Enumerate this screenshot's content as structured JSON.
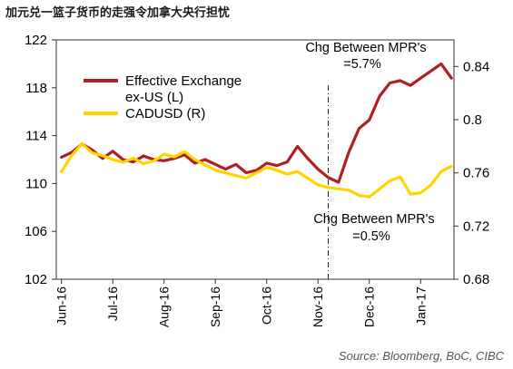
{
  "header": {
    "title": "加元兑一篮子货币的走强令加拿大央行担忧"
  },
  "footer": {
    "source": "Source:  Bloomberg, BoC, CIBC"
  },
  "chart_data": {
    "type": "line",
    "x_tick_labels": [
      "Jun-16",
      "Jul-16",
      "Aug-16",
      "Sep-16",
      "Oct-16",
      "Nov-16",
      "Dec-16",
      "Jan-17"
    ],
    "left_axis": {
      "ylim": [
        102,
        122
      ],
      "ticks": [
        102,
        106,
        110,
        114,
        118,
        122
      ]
    },
    "right_axis": {
      "ylim": [
        0.68,
        0.86
      ],
      "ticks": [
        0.68,
        0.72,
        0.76,
        0.8,
        0.84
      ]
    },
    "legend": [
      "Effective Exchange ex-US (L)",
      "CADUSD (R)"
    ],
    "legend_placement": "top-left",
    "annotations": [
      {
        "text_line1": "Chg Between MPR's",
        "text_line2": "=5.7%"
      },
      {
        "text_line1": "Chg Between MPR's",
        "text_line2": "=0.5%"
      }
    ],
    "vertical_marker_x": 5.2,
    "colors": {
      "primary": "#b01e23",
      "secondary": "#ffd400",
      "axis": "#333333",
      "text": "#000000"
    },
    "series": [
      {
        "name": "Effective Exchange ex-US (L)",
        "axis": "left",
        "x": [
          0,
          0.2,
          0.4,
          0.6,
          0.8,
          1.0,
          1.2,
          1.4,
          1.6,
          1.8,
          2.0,
          2.2,
          2.4,
          2.6,
          2.8,
          3.0,
          3.2,
          3.4,
          3.6,
          3.8,
          4.0,
          4.2,
          4.4,
          4.6,
          4.8,
          5.0,
          5.2,
          5.4,
          5.6,
          5.8,
          6.0,
          6.2,
          6.4,
          6.6,
          6.8,
          7.0,
          7.2,
          7.4,
          7.6
        ],
        "values": [
          112.2,
          112.6,
          113.3,
          112.8,
          112.1,
          112.7,
          112.0,
          111.8,
          112.3,
          112.0,
          111.9,
          112.1,
          112.4,
          111.7,
          112.0,
          111.6,
          111.2,
          111.6,
          110.9,
          111.1,
          111.7,
          111.5,
          111.8,
          113.1,
          112.1,
          111.2,
          110.5,
          110.1,
          112.6,
          114.6,
          115.3,
          117.3,
          118.4,
          118.6,
          118.2,
          118.8,
          119.4,
          120.0,
          118.8
        ]
      },
      {
        "name": "CADUSD (R)",
        "axis": "right",
        "x": [
          0,
          0.2,
          0.4,
          0.6,
          0.8,
          1.0,
          1.2,
          1.4,
          1.6,
          1.8,
          2.0,
          2.2,
          2.4,
          2.6,
          2.8,
          3.0,
          3.2,
          3.4,
          3.6,
          3.8,
          4.0,
          4.2,
          4.4,
          4.6,
          4.8,
          5.0,
          5.2,
          5.4,
          5.6,
          5.8,
          6.0,
          6.2,
          6.4,
          6.6,
          6.8,
          7.0,
          7.2,
          7.4,
          7.6
        ],
        "values": [
          0.761,
          0.773,
          0.782,
          0.775,
          0.773,
          0.77,
          0.768,
          0.771,
          0.767,
          0.769,
          0.774,
          0.772,
          0.776,
          0.77,
          0.766,
          0.762,
          0.76,
          0.758,
          0.756,
          0.76,
          0.764,
          0.762,
          0.759,
          0.761,
          0.756,
          0.751,
          0.749,
          0.748,
          0.747,
          0.743,
          0.742,
          0.748,
          0.754,
          0.757,
          0.744,
          0.745,
          0.751,
          0.761,
          0.765
        ]
      }
    ]
  }
}
